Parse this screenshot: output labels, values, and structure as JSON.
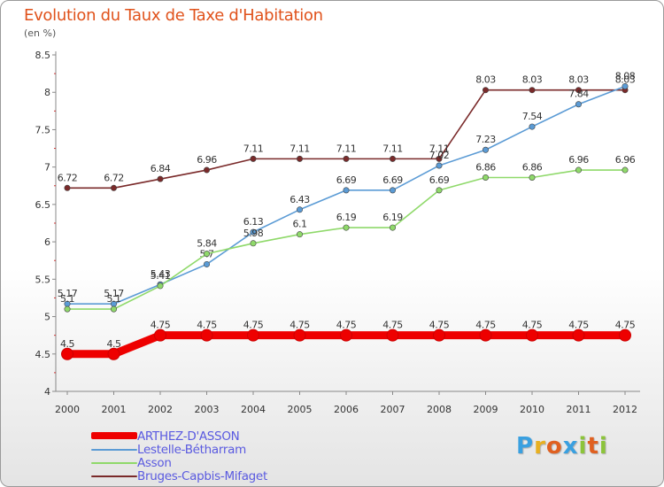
{
  "header": {
    "title": "Evolution du Taux de Taxe d'Habitation",
    "subtitle": "(en %)"
  },
  "logo": {
    "text": "Proxiti"
  },
  "chart_data": {
    "type": "line",
    "title": "Evolution du Taux de Taxe d'Habitation",
    "subtitle": "(en %)",
    "xlabel": "",
    "ylabel": "",
    "x": [
      "2000",
      "2001",
      "2002",
      "2003",
      "2004",
      "2005",
      "2006",
      "2007",
      "2008",
      "2009",
      "2010",
      "2011",
      "2012"
    ],
    "ylim": [
      4,
      8.5
    ],
    "yticks": [
      "4",
      "4.5",
      "5",
      "5.5",
      "6",
      "6.5",
      "7",
      "7.5",
      "8",
      "8.5"
    ],
    "grid": false,
    "legend_position": "bottom-left",
    "series": [
      {
        "name": "Bruges-Capbis-Mifaget",
        "color": "#7a2a2a",
        "values": [
          6.72,
          6.72,
          6.84,
          6.96,
          7.11,
          7.11,
          7.11,
          7.11,
          7.11,
          8.03,
          8.03,
          8.03,
          8.03
        ],
        "labels": [
          "6.72",
          "6.72",
          "6.84",
          "6.96",
          "7.11",
          "7.11",
          "7.11",
          "7.11",
          "7.11",
          "8.03",
          "8.03",
          "8.03",
          "8.03"
        ]
      },
      {
        "name": "Lestelle-Bétharram",
        "color": "#5b9bd5",
        "values": [
          5.17,
          5.17,
          5.43,
          5.7,
          6.13,
          6.43,
          6.69,
          6.69,
          7.02,
          7.23,
          7.54,
          7.84,
          8.08
        ],
        "labels": [
          "5.17",
          "5.17",
          "5.43",
          "5.7",
          "6.13",
          "6.43",
          "6.69",
          "6.69",
          "7.02",
          "7.23",
          "7.54",
          "7.84",
          "8.08"
        ]
      },
      {
        "name": "Asson",
        "color": "#8fd96a",
        "values": [
          5.1,
          5.1,
          5.41,
          5.84,
          5.98,
          6.1,
          6.19,
          6.19,
          6.69,
          6.86,
          6.86,
          6.96,
          6.96
        ],
        "labels": [
          "5.1",
          "5.1",
          "5.41",
          "5.84",
          "5.98",
          "6.1",
          "6.19",
          "6.19",
          "6.69",
          "6.86",
          "6.86",
          "6.96",
          "6.96"
        ]
      },
      {
        "name": "ARTHEZ-D'ASSON",
        "color": "#ee0000",
        "values": [
          4.5,
          4.5,
          4.75,
          4.75,
          4.75,
          4.75,
          4.75,
          4.75,
          4.75,
          4.75,
          4.75,
          4.75,
          4.75
        ],
        "labels": [
          "4.5",
          "4.5",
          "4.75",
          "4.75",
          "4.75",
          "4.75",
          "4.75",
          "4.75",
          "4.75",
          "4.75",
          "4.75",
          "4.75",
          "4.75"
        ]
      }
    ],
    "legend": [
      "ARTHEZ-D'ASSON",
      "Lestelle-Bétharram",
      "Asson",
      "Bruges-Capbis-Mifaget"
    ]
  }
}
